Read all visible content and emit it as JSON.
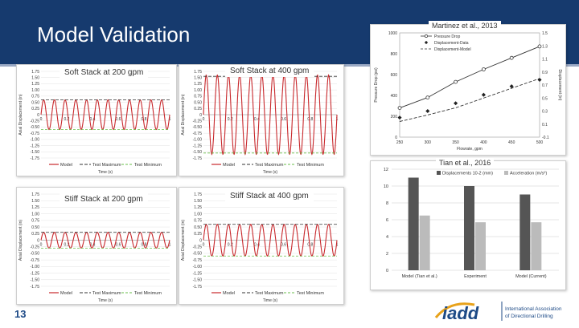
{
  "slide": {
    "title": "Model Validation",
    "page_number": "13"
  },
  "panels": [
    {
      "label": "Soft Stack at 200 gpm",
      "dashed_level": 0.6,
      "amplitude": 0.6,
      "cycles": 12,
      "solid_line": "both"
    },
    {
      "label": "Soft Stack at 400 gpm",
      "dashed_level": 1.55,
      "amplitude": 1.6,
      "cycles": 12,
      "solid_line": "min"
    },
    {
      "label": "Stiff Stack at 200 gpm",
      "dashed_level": 0.3,
      "amplitude": 0.3,
      "cycles": 12,
      "solid_line": "min"
    },
    {
      "label": "Stiff Stack at 400 gpm",
      "dashed_level": 0.6,
      "amplitude": 0.6,
      "cycles": 12,
      "solid_line": "min"
    }
  ],
  "stack_axis": {
    "y_ticks": [
      "1.75",
      "1.50",
      "1.25",
      "1.00",
      "0.75",
      "0.50",
      "0.25",
      "0",
      "-0.25",
      "-0.50",
      "-0.75",
      "-1.00",
      "-1.25",
      "-1.50",
      "-1.75"
    ],
    "x_ticks": [
      "0",
      "0.2",
      "0.4",
      "0.6",
      "0.8",
      "1"
    ],
    "ylabel": "Axial Displacement (in)",
    "xlabel": "Time (s)",
    "legend": [
      "Model",
      "Test Maximum",
      "Test Minimum"
    ],
    "colors": {
      "model": "#c8282c",
      "dashed": "#333333",
      "test_min": "#6abf4b"
    }
  },
  "martinez": {
    "caption": "Martinez et al., 2013",
    "legend": [
      "Pressure Drop",
      "Displacement-Data",
      "Displacement-Model"
    ],
    "y_left_ticks": [
      "1000",
      "800",
      "600",
      "400",
      "200",
      "0"
    ],
    "y_right_ticks": [
      "1.5",
      "1.3",
      "1.1",
      "0.9",
      "0.7",
      "0.5",
      "0.3",
      "0.1",
      "-0.1"
    ],
    "x_ticks": [
      "250",
      "300",
      "350",
      "400",
      "450",
      "500"
    ],
    "xlabel": "Flowrate, gpm",
    "ylabel_left": "Pressure Drop (psi)",
    "ylabel_right": "Displacement (in)",
    "chart_data": {
      "type": "line",
      "x": [
        250,
        300,
        350,
        400,
        450,
        500
      ],
      "series": [
        {
          "name": "Pressure Drop",
          "y": [
            280,
            380,
            530,
            650,
            760,
            870
          ],
          "axis": "left"
        },
        {
          "name": "Displacement-Data",
          "y": [
            0.2,
            0.3,
            0.42,
            0.55,
            0.68,
            0.78
          ],
          "axis": "right"
        },
        {
          "name": "Displacement-Model",
          "y": [
            0.14,
            0.24,
            0.35,
            0.5,
            0.65,
            0.8
          ],
          "axis": "right"
        }
      ]
    }
  },
  "tian": {
    "caption": "Tian et al., 2016",
    "legend": [
      "Displacements 10-2 (mm)",
      "Acceleration (m/s²)"
    ],
    "y_ticks": [
      "12",
      "10",
      "8",
      "6",
      "4",
      "2",
      "0"
    ],
    "ylim": [
      0,
      12
    ],
    "chart_data": {
      "type": "bar",
      "categories": [
        "Model (Tian et al.)",
        "Experiment",
        "Model (Current)"
      ],
      "series": [
        {
          "name": "Displacements 10-2 (mm)",
          "values": [
            11,
            10,
            9
          ],
          "color": "#555555"
        },
        {
          "name": "Acceleration (m/s²)",
          "values": [
            6.5,
            5.7,
            5.7
          ],
          "color": "#bbbbbb"
        }
      ]
    }
  },
  "logo": {
    "word": "iadd",
    "org_line1": "International Association",
    "org_line2": "of Directional Drilling"
  }
}
